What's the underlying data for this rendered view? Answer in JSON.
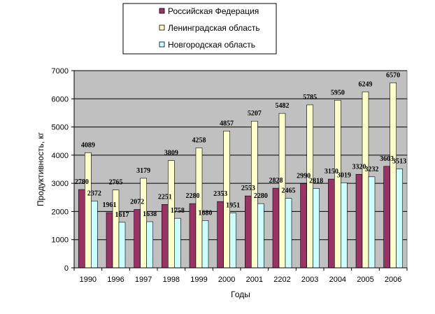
{
  "chart_data": {
    "type": "bar",
    "categories": [
      "1990",
      "1996",
      "1997",
      "1998",
      "1999",
      "2000",
      "2001",
      "2202",
      "2003",
      "2004",
      "2005",
      "2006"
    ],
    "series": [
      {
        "name": "Российская Федерация",
        "color": "#993366",
        "values": [
          2780,
          1961,
          2072,
          2251,
          2280,
          2353,
          2553,
          2828,
          2990,
          3150,
          3320,
          3603
        ]
      },
      {
        "name": "Ленинградская область",
        "color": "#FFFFCC",
        "values": [
          4089,
          2765,
          3179,
          3809,
          4258,
          4857,
          5207,
          5482,
          5785,
          5950,
          6249,
          6570
        ]
      },
      {
        "name": "Новгородская область",
        "color": "#CCFFFF",
        "values": [
          2372,
          1617,
          1638,
          1758,
          1680,
          1951,
          2280,
          2465,
          2818,
          3019,
          3232,
          3513
        ]
      }
    ],
    "xlabel": "Годы",
    "ylabel": "Продуктивность, кг",
    "ylim": [
      0,
      7000
    ],
    "yticks": [
      0,
      1000,
      2000,
      3000,
      4000,
      5000,
      6000,
      7000
    ],
    "grid": true,
    "legend_position": "top-center",
    "plot_background": "#C0C0C0"
  }
}
